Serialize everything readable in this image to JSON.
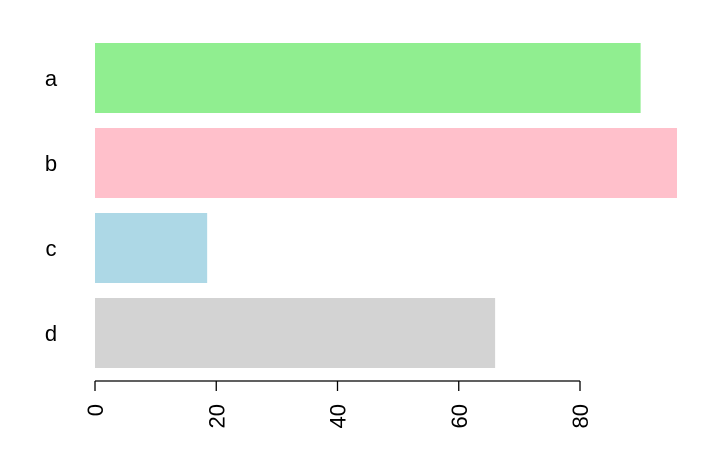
{
  "chart_data": {
    "type": "bar",
    "orientation": "horizontal",
    "title": "",
    "xlabel": "",
    "ylabel": "",
    "categories": [
      "a",
      "b",
      "c",
      "d"
    ],
    "values": [
      90,
      96,
      18.5,
      66
    ],
    "colors": [
      "#90EE90",
      "#FFC0CB",
      "#ADD8E6",
      "#D3D3D3"
    ],
    "xlim": [
      0,
      96
    ],
    "x_ticks": [
      0,
      20,
      40,
      60,
      80
    ],
    "x_tick_labels": [
      "0",
      "20",
      "40",
      "60",
      "80"
    ],
    "x_tick_label_rotation": "vertical",
    "grid": false,
    "legend": "none"
  }
}
